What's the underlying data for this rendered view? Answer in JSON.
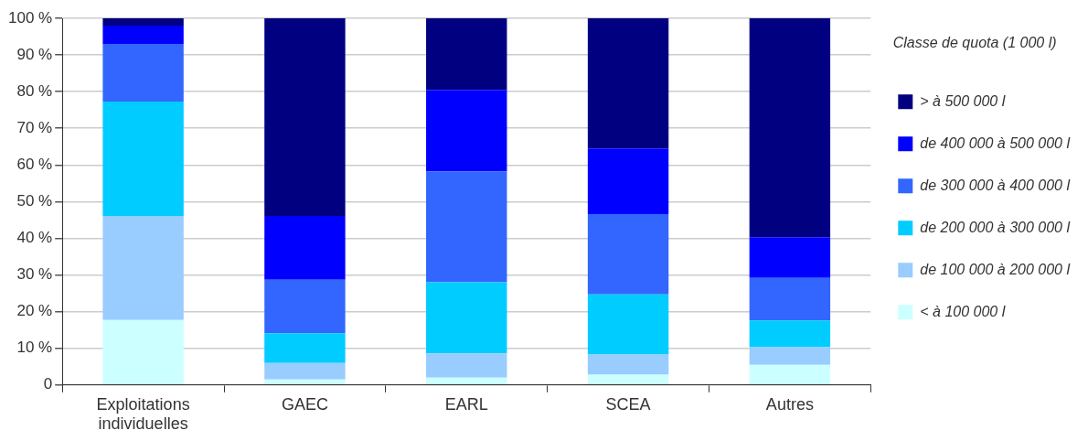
{
  "chart_data": {
    "type": "bar",
    "stacked": true,
    "categories": [
      "Exploitations individuelles",
      "GAEC",
      "EARL",
      "SCEA",
      "Autres"
    ],
    "legend_title": "Classe de quota (1 000 l)",
    "series": [
      {
        "name": "< à 100 000 l",
        "color": "#ccffff",
        "values": [
          17.7,
          1.5,
          2.0,
          2.8,
          5.5
        ]
      },
      {
        "name": "de 100 000 à 200 000 l",
        "color": "#99ccff",
        "values": [
          28.4,
          4.5,
          6.6,
          5.5,
          4.8
        ]
      },
      {
        "name": "de 200 000 à 300 000 l",
        "color": "#00ccff",
        "values": [
          31.2,
          8.1,
          19.4,
          16.4,
          7.3
        ]
      },
      {
        "name": "de 300 000 à 400 000 l",
        "color": "#3366ff",
        "values": [
          15.7,
          14.6,
          30.2,
          21.9,
          11.6
        ]
      },
      {
        "name": "de 400 000 à 500 000 l",
        "color": "#0000ff",
        "values": [
          5.0,
          17.4,
          22.3,
          17.9,
          11.1
        ]
      },
      {
        "name": "> à 500 000 l",
        "color": "#000080",
        "values": [
          2.0,
          53.9,
          19.5,
          35.5,
          59.7
        ]
      }
    ],
    "ylim": [
      0,
      100
    ],
    "yticks": [
      {
        "value": 0,
        "label": "0"
      },
      {
        "value": 10,
        "label": "10 %"
      },
      {
        "value": 20,
        "label": "20 %"
      },
      {
        "value": 30,
        "label": "30 %"
      },
      {
        "value": 40,
        "label": "40 %"
      },
      {
        "value": 50,
        "label": "50 %"
      },
      {
        "value": 60,
        "label": "60 %"
      },
      {
        "value": 70,
        "label": "70 %"
      },
      {
        "value": 80,
        "label": "80 %"
      },
      {
        "value": 90,
        "label": "90 %"
      },
      {
        "value": 100,
        "label": "100 %"
      }
    ],
    "grid": "y",
    "legend": "right"
  }
}
